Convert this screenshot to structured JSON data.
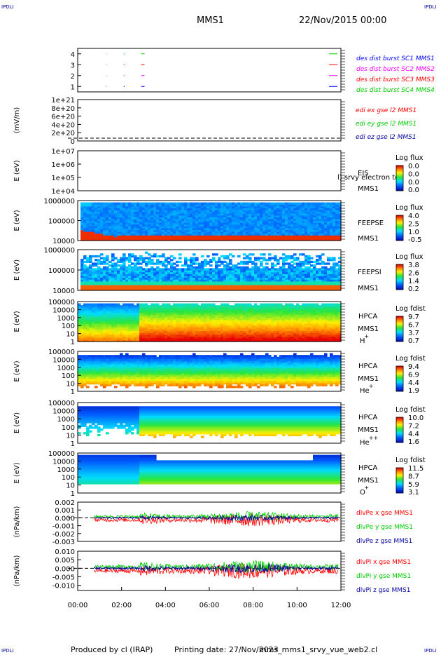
{
  "header": {
    "corner_label": "IPDLI",
    "spacecraft": "MMS1",
    "date": "22/Nov/2015 00:00"
  },
  "footer": {
    "produced_by": "Produced by cl (IRAP)",
    "printing_date": "Printing date: 27/Nov/2023",
    "filename": "mms_mms1_srvy_vue_web2.cl"
  },
  "chart_data": [
    {
      "type": "line",
      "panel": "burst-availability",
      "xlabel": "",
      "ylabel": "",
      "ylim": [
        0.5,
        4.5
      ],
      "yticks": [
        "1",
        "2",
        "3",
        "4"
      ],
      "series": [
        {
          "name": "des dist burst SC1 MMS1",
          "color": "#0000ff",
          "level": 1,
          "intervals": [
            [
              1.3,
              1.32
            ],
            [
              2.1,
              2.14
            ],
            [
              2.9,
              3.05
            ]
          ]
        },
        {
          "name": "des dist burst SC2 MMS2",
          "color": "#ff00ff",
          "level": 2,
          "intervals": [
            [
              1.3,
              1.32
            ],
            [
              2.1,
              2.14
            ],
            [
              2.9,
              3.05
            ]
          ]
        },
        {
          "name": "des dist burst SC3 MMS3",
          "color": "#ff0000",
          "level": 3,
          "intervals": [
            [
              1.3,
              1.32
            ],
            [
              2.1,
              2.14
            ],
            [
              2.9,
              3.05
            ]
          ]
        },
        {
          "name": "des dist burst SC4 MMS4",
          "color": "#00cc00",
          "level": 4,
          "intervals": [
            [
              1.3,
              1.32
            ],
            [
              2.1,
              2.14
            ],
            [
              2.9,
              3.05
            ]
          ]
        }
      ]
    },
    {
      "type": "line",
      "panel": "edi-electric-field",
      "ylabel": "(mV/m)",
      "ylim": [
        0,
        1e+21
      ],
      "yticks": [
        "0",
        "2e+20",
        "4e+20",
        "6e+20",
        "8e+20",
        "1e+21"
      ],
      "series": [
        {
          "name": "edi ex gse l2 MMS1",
          "color": "#ff0000",
          "values": []
        },
        {
          "name": "edi ey gse l2 MMS1",
          "color": "#00cc00",
          "values": []
        },
        {
          "name": "edi ez gse l2 MMS1",
          "color": "#0000a0",
          "values": []
        }
      ]
    },
    {
      "type": "heatmap",
      "panel": "eis",
      "ylabel": "E (eV)",
      "ylog": true,
      "ylim": [
        10000.0,
        10000000.0
      ],
      "yticks": [
        "1e+04",
        "1e+05",
        "1e+06",
        "1e+07"
      ],
      "labels": [
        "EIS",
        "MMS1"
      ],
      "overlay_text": "l) srvy electron to",
      "colorbar": {
        "title": "Log flux",
        "ticks": [
          "0.0",
          "0.0",
          "0.0",
          "0.0"
        ]
      }
    },
    {
      "type": "heatmap",
      "panel": "feeps-electron",
      "ylabel": "E (eV)",
      "ylog": true,
      "ylim": [
        10000,
        1000000
      ],
      "yticks": [
        "10000",
        "100000",
        "1000000"
      ],
      "labels": [
        "FEEPSE",
        "MMS1"
      ],
      "colorbar": {
        "title": "Log flux",
        "ticks": [
          "4.0",
          "2.5",
          "1.0",
          "-0.5"
        ]
      }
    },
    {
      "type": "heatmap",
      "panel": "feeps-ion",
      "ylabel": "E (eV)",
      "ylog": true,
      "ylim": [
        10000,
        1000000
      ],
      "yticks": [
        "10000",
        "100000",
        "1000000"
      ],
      "labels": [
        "FEEPSI",
        "MMS1"
      ],
      "colorbar": {
        "title": "Log flux",
        "ticks": [
          "3.8",
          "2.6",
          "1.4",
          "0.2"
        ]
      }
    },
    {
      "type": "heatmap",
      "panel": "hpca-h",
      "ylabel": "E (eV)",
      "ylog": true,
      "ylim": [
        1,
        100000
      ],
      "yticks": [
        "1",
        "10",
        "100",
        "1000",
        "10000",
        "100000"
      ],
      "labels": [
        "HPCA",
        "MMS1",
        "H",
        "+"
      ],
      "colorbar": {
        "title": "Log fdist",
        "ticks": [
          "9.7",
          "6.7",
          "3.7",
          "0.7"
        ]
      }
    },
    {
      "type": "heatmap",
      "panel": "hpca-he",
      "ylabel": "E (eV)",
      "ylog": true,
      "ylim": [
        1,
        100000
      ],
      "yticks": [
        "1",
        "10",
        "100",
        "1000",
        "10000",
        "100000"
      ],
      "labels": [
        "HPCA",
        "MMS1",
        "He",
        "+"
      ],
      "colorbar": {
        "title": "Log fdist",
        "ticks": [
          "9.4",
          "6.9",
          "4.4",
          "1.9"
        ]
      }
    },
    {
      "type": "heatmap",
      "panel": "hpca-hepp",
      "ylabel": "E (eV)",
      "ylog": true,
      "ylim": [
        1,
        100000
      ],
      "yticks": [
        "1",
        "10",
        "100",
        "1000",
        "10000",
        "100000"
      ],
      "labels": [
        "HPCA",
        "MMS1",
        "He",
        "++"
      ],
      "colorbar": {
        "title": "Log fdist",
        "ticks": [
          "10.0",
          "7.2",
          "4.4",
          "1.6"
        ]
      }
    },
    {
      "type": "heatmap",
      "panel": "hpca-o",
      "ylabel": "E (eV)",
      "ylog": true,
      "ylim": [
        1,
        100000
      ],
      "yticks": [
        "1",
        "10",
        "100",
        "1000",
        "10000",
        "100000"
      ],
      "labels": [
        "HPCA",
        "MMS1",
        "O",
        "+"
      ],
      "colorbar": {
        "title": "Log fdist",
        "ticks": [
          "11.5",
          "8.7",
          "5.9",
          "3.1"
        ]
      }
    },
    {
      "type": "line",
      "panel": "div-pe",
      "ylabel": "(nPa/km)",
      "ylim": [
        -0.003,
        0.002
      ],
      "yticks": [
        "-0.003",
        "-0.002",
        "-0.001",
        "0.000",
        "0.001",
        "0.002"
      ],
      "series": [
        {
          "name": "dlvPe x gse MMS1",
          "color": "#ff0000",
          "amplitude": 0.0009
        },
        {
          "name": "dlvPe y gse MMS1",
          "color": "#00cc00",
          "amplitude": 0.0007
        },
        {
          "name": "dlvPe z gse MMS1",
          "color": "#0000a0",
          "amplitude": 0.0004
        }
      ]
    },
    {
      "type": "line",
      "panel": "div-pi",
      "ylabel": "(nPa/km)",
      "ylim": [
        -0.013,
        0.01
      ],
      "yticks": [
        "-0.010",
        "-0.005",
        "0.000",
        "0.005",
        "0.010"
      ],
      "series": [
        {
          "name": "dlvPi x gse MMS1",
          "color": "#ff0000",
          "amplitude": 0.005
        },
        {
          "name": "dlvPi y gse MMS1",
          "color": "#00cc00",
          "amplitude": 0.004
        },
        {
          "name": "dlvPi z gse MMS1",
          "color": "#0000a0",
          "amplitude": 0.003
        }
      ]
    }
  ],
  "time_axis": {
    "range_hours": [
      0,
      12
    ],
    "ticks": [
      "00:00",
      "02:00",
      "04:00",
      "06:00",
      "08:00",
      "10:00",
      "12:00"
    ]
  }
}
